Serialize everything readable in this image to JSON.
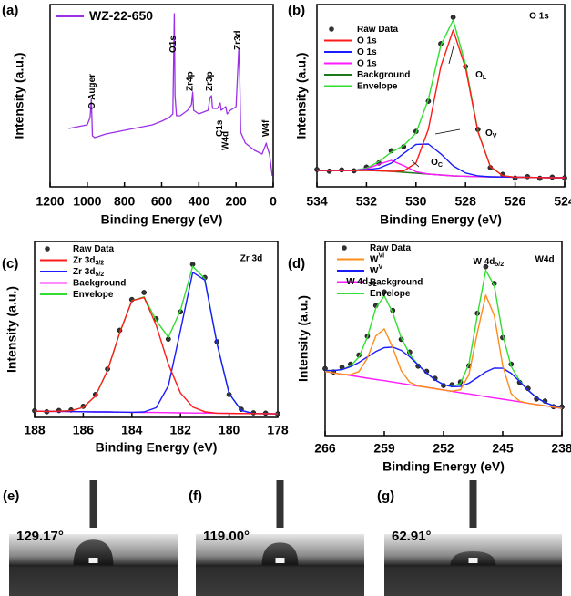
{
  "chart_data": [
    {
      "type": "line",
      "panel_label": "(a)",
      "xlabel": "Binding Energy (eV)",
      "ylabel": "Intensity (a.u.)",
      "xlim": [
        1200,
        0
      ],
      "xticks": [
        1200,
        1000,
        800,
        600,
        400,
        200,
        0
      ],
      "ylim": [
        0,
        100
      ],
      "x": [
        1100,
        1050,
        1000,
        985,
        978,
        972,
        960,
        900,
        850,
        800,
        750,
        700,
        650,
        600,
        560,
        540,
        532,
        528,
        520,
        500,
        460,
        440,
        433,
        428,
        400,
        350,
        340,
        332,
        326,
        300,
        285,
        280,
        255,
        248,
        230,
        200,
        185,
        180,
        175,
        150,
        100,
        60,
        37,
        33,
        20,
        5
      ],
      "series": [
        {
          "name": "WZ-22-650",
          "color": "#9b30e8",
          "style": "line",
          "values": [
            32,
            33,
            34,
            38,
            48,
            28,
            27,
            29,
            30,
            31,
            32,
            33,
            34,
            36,
            38,
            40,
            95,
            50,
            39,
            39,
            42,
            45,
            52,
            42,
            40,
            42,
            49,
            50,
            43,
            43,
            46,
            42,
            44,
            40,
            42,
            44,
            76,
            60,
            30,
            24,
            20,
            18,
            24,
            22,
            18,
            6
          ]
        }
      ],
      "annotations": [
        {
          "text": "O Auger"
        },
        {
          "text": "O1s"
        },
        {
          "text": "Zr4p"
        },
        {
          "text": "Zr3p"
        },
        {
          "text": "C1s"
        },
        {
          "text": "W4d"
        },
        {
          "text": "Zr3d"
        },
        {
          "text": "W4f"
        }
      ]
    },
    {
      "type": "line",
      "panel_label": "(b)",
      "corner_label": "O 1s",
      "xlabel": "Binding Energy (eV)",
      "ylabel": "Intensity (a.u.)",
      "xlim": [
        534,
        524
      ],
      "xticks": [
        534,
        532,
        530,
        528,
        526,
        524
      ],
      "ylim": [
        0,
        100
      ],
      "x": [
        534,
        533.5,
        533,
        532.5,
        532,
        531.5,
        531,
        530.5,
        530,
        529.5,
        529,
        528.5,
        528,
        527.5,
        527,
        526.5,
        526,
        525.5,
        525,
        524.5,
        524
      ],
      "series": [
        {
          "name": "Raw Data",
          "color": "#333333",
          "style": "dots",
          "values": [
            9.5,
            8.6,
            9.3,
            8.8,
            10.8,
            13.1,
            19.8,
            22,
            30.4,
            47,
            78.5,
            93,
            66,
            31.5,
            10.5,
            6.8,
            4.8,
            5.6,
            4.7,
            5.3,
            4.9
          ]
        },
        {
          "name": "O 1s",
          "color": "#ff1a1a",
          "style": "line",
          "values": [
            9,
            9,
            9,
            9,
            9,
            8.8,
            8.5,
            8.7,
            13.1,
            31.6,
            66,
            86,
            65.3,
            30.2,
            11.1,
            6.1,
            5.3,
            5.2,
            5.1,
            5,
            5
          ]
        },
        {
          "name": "O 1s",
          "color": "#1a1aff",
          "style": "line",
          "values": [
            9,
            9,
            9,
            9.1,
            9.4,
            10.2,
            13,
            18.3,
            23.3,
            23.5,
            18.1,
            11.5,
            7.6,
            6,
            5.5,
            5.4,
            5.3,
            5.2,
            5.1,
            5,
            5
          ]
        },
        {
          "name": "O 1s",
          "color": "#ff1aff",
          "style": "line",
          "values": [
            9,
            9,
            9,
            9,
            9.8,
            12.4,
            14.5,
            11.6,
            8.3,
            7,
            6.5,
            6,
            5.8,
            5.6,
            5.5,
            5.4,
            5.3,
            5.2,
            5.1,
            5,
            5
          ]
        },
        {
          "name": "Background",
          "color": "#1a7a1a",
          "style": "line",
          "values": [
            9,
            9,
            9,
            9,
            9,
            8.8,
            8.5,
            8,
            7.5,
            7,
            6.5,
            6,
            5.8,
            5.6,
            5.5,
            5.4,
            5.3,
            5.2,
            5.1,
            5,
            5
          ]
        },
        {
          "name": "Envelope",
          "color": "#33dd33",
          "style": "line",
          "values": [
            9,
            9,
            9,
            9.1,
            10.2,
            13.8,
            19,
            22.6,
            29.5,
            48.1,
            77.6,
            91.5,
            67.1,
            30.6,
            11.1,
            6.1,
            5.3,
            5.2,
            5.1,
            5,
            5
          ]
        }
      ],
      "annotations": [
        {
          "text": "O",
          "sub": "L"
        },
        {
          "text": "O",
          "sub": "V"
        },
        {
          "text": "O",
          "sub": "C"
        }
      ]
    },
    {
      "type": "line",
      "panel_label": "(c)",
      "corner_label": "Zr 3d",
      "xlabel": "Binding Energy (eV)",
      "ylabel": "Intensity (a.u.)",
      "xlim": [
        188,
        178
      ],
      "xticks": [
        188,
        186,
        184,
        182,
        180,
        178
      ],
      "ylim": [
        0,
        100
      ],
      "x": [
        188,
        187.5,
        187,
        186.5,
        186,
        185.5,
        185,
        184.5,
        184,
        183.5,
        183,
        182.5,
        182,
        181.5,
        181,
        180.5,
        180,
        179.5,
        179,
        178.5,
        178
      ],
      "series": [
        {
          "name": "Raw Data",
          "color": "#333333",
          "style": "dots",
          "values": [
            3.8,
            3.2,
            3.9,
            4.2,
            6.3,
            13,
            27.5,
            49.5,
            67,
            71,
            56,
            44.5,
            60,
            87,
            79.5,
            43,
            13,
            4.6,
            2.6,
            2.4,
            2
          ]
        },
        {
          "name": "Zr 3d",
          "sub": "3/2",
          "color": "#ff1a1a",
          "style": "line",
          "values": [
            3.5,
            3.4,
            3.5,
            3.8,
            5.7,
            12.2,
            26.7,
            48,
            66.3,
            68.2,
            52.4,
            30.2,
            13.9,
            5.9,
            3.2,
            2.4,
            2.3,
            2.2,
            2.2,
            2.1,
            2
          ]
        },
        {
          "name": "Zr 3d",
          "sub": "5/2",
          "color": "#1a1aff",
          "style": "line",
          "values": [
            3.5,
            3.4,
            3.4,
            3.3,
            3.2,
            3.1,
            3.1,
            3,
            2.9,
            3.1,
            5.5,
            18,
            49.6,
            82.5,
            78.1,
            41.9,
            13.6,
            4,
            2.2,
            2.1,
            2
          ]
        },
        {
          "name": "Background",
          "color": "#ff1aff",
          "style": "line",
          "values": [
            3.5,
            3.4,
            3.4,
            3.3,
            3.2,
            3.1,
            3.1,
            3,
            2.9,
            2.8,
            2.8,
            2.7,
            2.6,
            2.5,
            2.5,
            2.4,
            2.3,
            2.2,
            2.2,
            2.1,
            2
          ]
        },
        {
          "name": "Envelope",
          "color": "#33dd33",
          "style": "line",
          "values": [
            3.5,
            3.4,
            3.5,
            3.8,
            5.7,
            12.2,
            26.7,
            48,
            66.3,
            68.5,
            55.1,
            45.5,
            60.9,
            85.9,
            78.8,
            41.9,
            13.6,
            4,
            2.2,
            2.1,
            2
          ]
        }
      ]
    },
    {
      "type": "line",
      "panel_label": "(d)",
      "corner_label": "W4d",
      "xlabel": "Binding Energy (eV)",
      "ylabel": "Intensity (a.u.)",
      "xlim": [
        266,
        238
      ],
      "xticks": [
        266,
        259,
        252,
        245,
        238
      ],
      "ylim": [
        0,
        100
      ],
      "x": [
        266,
        265,
        264,
        263,
        262,
        261,
        260,
        259,
        258,
        257,
        256,
        255,
        254,
        253,
        252,
        251,
        250,
        249,
        248,
        247,
        246,
        245,
        244,
        243,
        242,
        241,
        240,
        239,
        238
      ],
      "series": [
        {
          "name": "Raw Data",
          "color": "#333333",
          "style": "dots",
          "values": [
            34.5,
            32.8,
            35.2,
            36.8,
            41.5,
            51.2,
            67,
            74,
            64.5,
            49.6,
            43,
            35.8,
            33.1,
            29.5,
            25.8,
            26.2,
            27.6,
            36,
            63,
            87,
            78.4,
            50.5,
            36.8,
            27.4,
            24.3,
            18.9,
            17.8,
            14.9,
            14.8
          ]
        },
        {
          "name": "W",
          "sup": "VI",
          "color": "#ff8c1a",
          "style": "line",
          "values": [
            33,
            32.3,
            31.6,
            31.4,
            33,
            39.9,
            51.3,
            55,
            45.2,
            33.4,
            27.5,
            25.6,
            24.9,
            24.2,
            23.5,
            22.9,
            23.6,
            31.4,
            52.9,
            72.4,
            61.9,
            36,
            21.6,
            17.7,
            16.7,
            16,
            15.4,
            14.7,
            14
          ]
        },
        {
          "name": "W",
          "sup": "V",
          "color": "#1a1aff",
          "style": "line",
          "values": [
            33.5,
            33.5,
            34,
            35.5,
            37.7,
            40.5,
            43.3,
            45.3,
            45.6,
            43.9,
            40.6,
            36.4,
            32.3,
            28.7,
            26.3,
            25.2,
            25.3,
            27,
            29.8,
            32.8,
            34.8,
            34.7,
            32.1,
            27.9,
            23.4,
            19.6,
            17.1,
            15.4,
            14.2
          ]
        },
        {
          "name": "Background",
          "color": "#ff1aff",
          "style": "line",
          "values": [
            33,
            32.3,
            31.6,
            31,
            30.3,
            29.6,
            28.9,
            28.3,
            27.6,
            26.9,
            26.2,
            25.5,
            24.9,
            24.2,
            23.5,
            22.8,
            22.1,
            21.5,
            20.8,
            20.1,
            19.4,
            18.8,
            18.1,
            17.4,
            16.7,
            16,
            15.4,
            14.7,
            14
          ]
        },
        {
          "name": "Envelope",
          "color": "#33dd33",
          "style": "line",
          "values": [
            33.5,
            33.5,
            34,
            35.9,
            40.4,
            50.8,
            65.7,
            72,
            63.2,
            50.4,
            41.9,
            36.5,
            32.3,
            28.7,
            26.3,
            25.3,
            26.8,
            36.9,
            61.9,
            85.1,
            77.3,
            51.9,
            35.6,
            28.2,
            23.4,
            19.6,
            17.1,
            15.4,
            14.2
          ]
        }
      ],
      "annotations": [
        {
          "text": "W 4d",
          "sub": "3/2"
        },
        {
          "text": "W 4d",
          "sub": "5/2"
        }
      ]
    }
  ],
  "images": [
    {
      "label": "(e)",
      "angle": "129.17°"
    },
    {
      "label": "(f)",
      "angle": "119.00°"
    },
    {
      "label": "(g)",
      "angle": "62.91°"
    }
  ]
}
